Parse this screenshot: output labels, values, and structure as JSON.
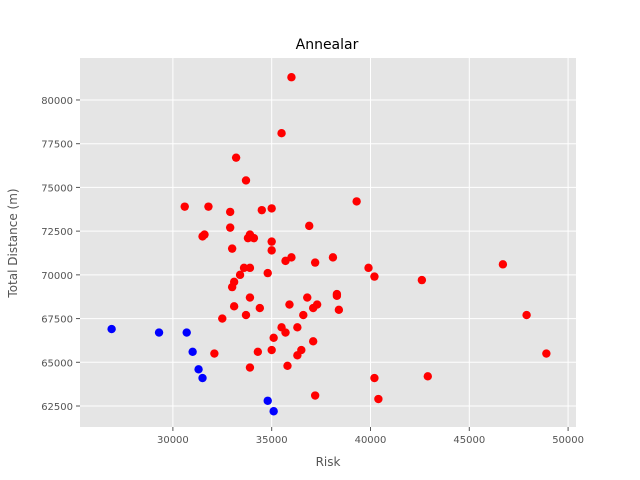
{
  "chart_data": {
    "type": "scatter",
    "title": "Annealar",
    "xlabel": "Risk",
    "ylabel": "Total Distance (m)",
    "xlim": [
      25300,
      50400
    ],
    "ylim": [
      61300,
      82400
    ],
    "xticks": [
      30000,
      35000,
      40000,
      45000,
      50000
    ],
    "yticks": [
      62500,
      65000,
      67500,
      70000,
      72500,
      75000,
      77500,
      80000
    ],
    "grid": true,
    "colors": {
      "background": "#E5E5E5",
      "grid": "#FFFFFF",
      "red": "#FF0000",
      "blue": "#0000FF"
    },
    "series": [
      {
        "color": "#FF0000",
        "points": [
          [
            36000,
            81300
          ],
          [
            35500,
            78100
          ],
          [
            33200,
            76700
          ],
          [
            33700,
            75400
          ],
          [
            39300,
            74200
          ],
          [
            30600,
            73900
          ],
          [
            31800,
            73900
          ],
          [
            34500,
            73700
          ],
          [
            35000,
            73800
          ],
          [
            32900,
            73600
          ],
          [
            36900,
            72800
          ],
          [
            32900,
            72700
          ],
          [
            31600,
            72300
          ],
          [
            31500,
            72200
          ],
          [
            33900,
            72300
          ],
          [
            34100,
            72100
          ],
          [
            33800,
            72100
          ],
          [
            35000,
            71900
          ],
          [
            33000,
            71500
          ],
          [
            35000,
            71400
          ],
          [
            36000,
            71000
          ],
          [
            35700,
            70800
          ],
          [
            37200,
            70700
          ],
          [
            38100,
            71000
          ],
          [
            39900,
            70400
          ],
          [
            40200,
            69900
          ],
          [
            42600,
            69700
          ],
          [
            46700,
            70600
          ],
          [
            34800,
            70100
          ],
          [
            33400,
            70000
          ],
          [
            33100,
            69600
          ],
          [
            33000,
            69300
          ],
          [
            33600,
            70400
          ],
          [
            33900,
            70400
          ],
          [
            38300,
            68900
          ],
          [
            38300,
            68800
          ],
          [
            33900,
            68700
          ],
          [
            36800,
            68700
          ],
          [
            35900,
            68300
          ],
          [
            37300,
            68300
          ],
          [
            37100,
            68100
          ],
          [
            33100,
            68200
          ],
          [
            34400,
            68100
          ],
          [
            38400,
            68000
          ],
          [
            33700,
            67700
          ],
          [
            36600,
            67700
          ],
          [
            32500,
            67500
          ],
          [
            47900,
            67700
          ],
          [
            35500,
            67000
          ],
          [
            36300,
            67000
          ],
          [
            35700,
            66700
          ],
          [
            35100,
            66400
          ],
          [
            37100,
            66200
          ],
          [
            34300,
            65600
          ],
          [
            35000,
            65700
          ],
          [
            36500,
            65700
          ],
          [
            36300,
            65400
          ],
          [
            32100,
            65500
          ],
          [
            48900,
            65500
          ],
          [
            33900,
            64700
          ],
          [
            35800,
            64800
          ],
          [
            40200,
            64100
          ],
          [
            42900,
            64200
          ],
          [
            37200,
            63100
          ],
          [
            40400,
            62900
          ]
        ]
      },
      {
        "color": "#0000FF",
        "points": [
          [
            26900,
            66900
          ],
          [
            29300,
            66700
          ],
          [
            30700,
            66700
          ],
          [
            31000,
            65600
          ],
          [
            31300,
            64600
          ],
          [
            31500,
            64100
          ],
          [
            34800,
            62800
          ],
          [
            35100,
            62200
          ]
        ]
      }
    ]
  }
}
